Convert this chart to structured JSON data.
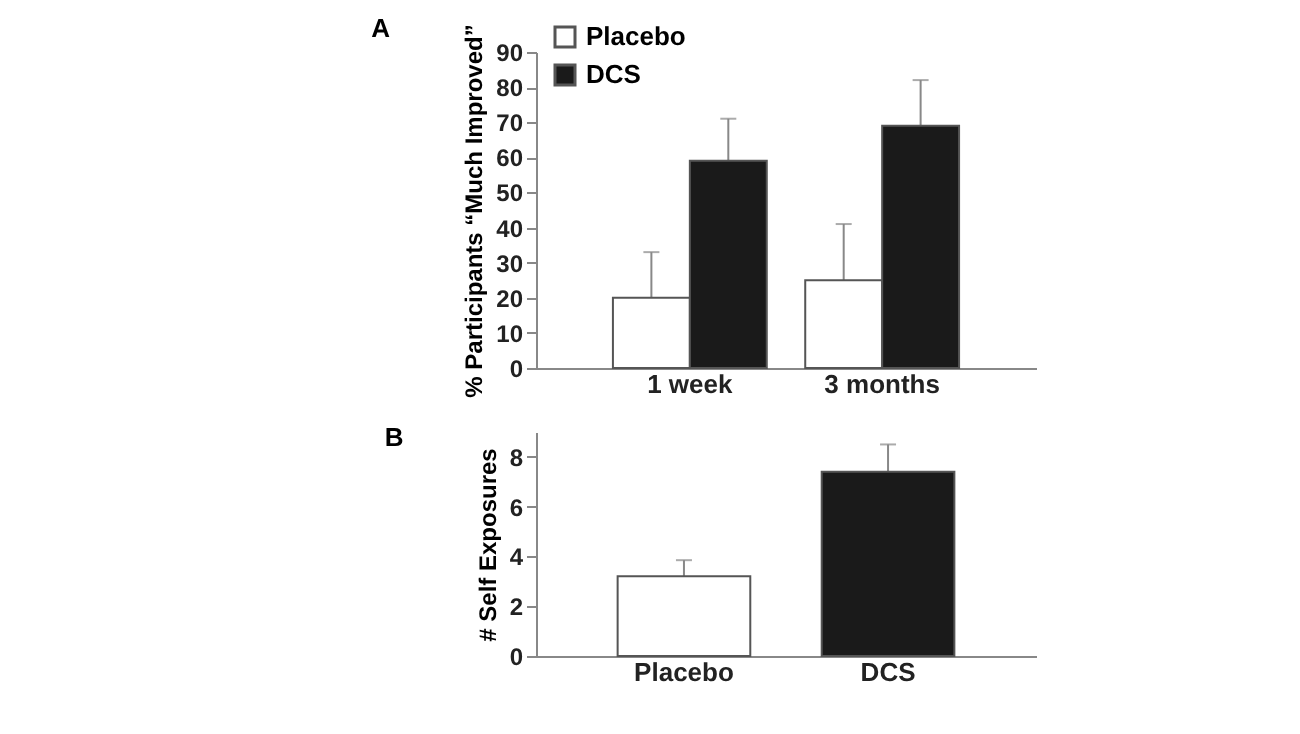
{
  "chart_data": [
    {
      "type": "bar",
      "title": "A",
      "ylabel": "% Participants “Much Improved”",
      "categories": [
        "1 week",
        "3 months"
      ],
      "ylim": [
        0,
        90
      ],
      "yticks": [
        0,
        10,
        20,
        30,
        40,
        50,
        60,
        70,
        80,
        90
      ],
      "grid": false,
      "legend": "top left",
      "series": [
        {
          "name": "Placebo",
          "color": "#ffffff",
          "values": [
            20,
            25
          ],
          "errors": [
            [
              20,
              33
            ],
            [
              25,
              41
            ]
          ]
        },
        {
          "name": "DCS",
          "color": "#1a1a1a",
          "values": [
            59,
            69
          ],
          "errors": [
            [
              59,
              71
            ],
            [
              69,
              82
            ]
          ]
        }
      ]
    },
    {
      "type": "bar",
      "title": "B",
      "ylabel": "# Self Exposures",
      "categories": [
        "Placebo",
        "DCS"
      ],
      "values": [
        3.2,
        7.4
      ],
      "errors": [
        [
          3.2,
          3.85
        ],
        [
          7.4,
          8.5
        ]
      ],
      "colors": [
        "#ffffff",
        "#1a1a1a"
      ],
      "ylim": [
        0,
        9
      ],
      "yticks": [
        0,
        2,
        4,
        6,
        8
      ],
      "grid": false
    }
  ]
}
